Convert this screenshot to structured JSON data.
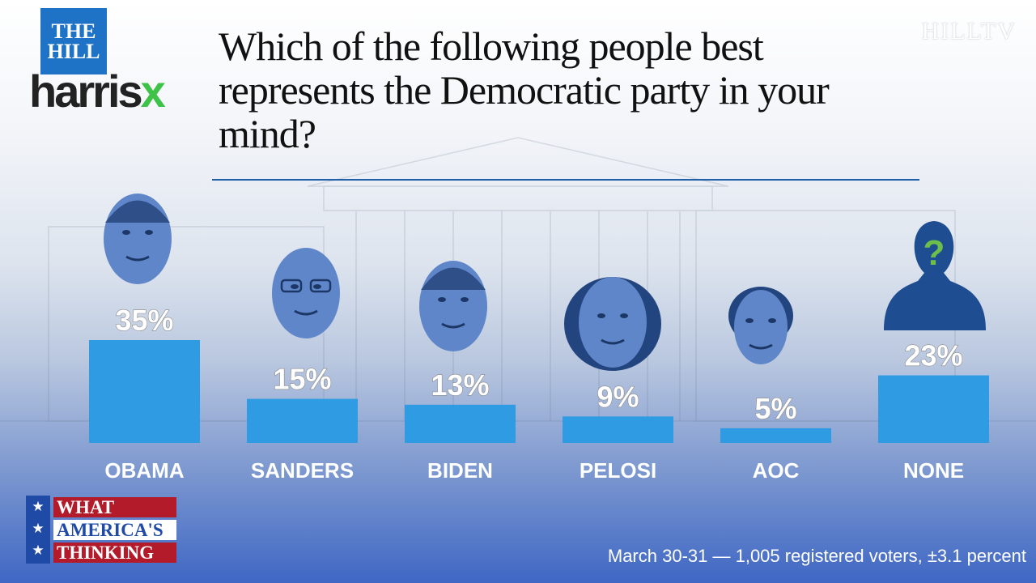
{
  "branding": {
    "hill_line1": "THE",
    "hill_line2": "HILL",
    "harris_text": "harris",
    "harris_x": "x",
    "hilltv": "HILLTV",
    "wat_line1": "WHAT",
    "wat_line2": "AMERICA'S",
    "wat_line3": "THINKING"
  },
  "footnote": "March 30-31 — 1,005 registered voters, ±3.1 percent",
  "colors": {
    "bar": "#2f9be3",
    "accent": "#1f73c6",
    "green": "#3ec248",
    "red": "#b31b2b"
  },
  "chart_data": {
    "type": "bar",
    "title": "Which of the following people best represents the Democratic party in your mind?",
    "categories": [
      "OBAMA",
      "SANDERS",
      "BIDEN",
      "PELOSI",
      "AOC",
      "NONE"
    ],
    "values": [
      35,
      15,
      13,
      9,
      5,
      23
    ],
    "value_labels": [
      "35%",
      "15%",
      "13%",
      "9%",
      "5%",
      "23%"
    ],
    "icons": [
      "obama-portrait-icon",
      "sanders-portrait-icon",
      "biden-portrait-icon",
      "pelosi-portrait-icon",
      "aoc-portrait-icon",
      "question-silhouette-icon"
    ],
    "unit": "%",
    "ylim": [
      0,
      35
    ],
    "grid": false,
    "legend": "none"
  }
}
